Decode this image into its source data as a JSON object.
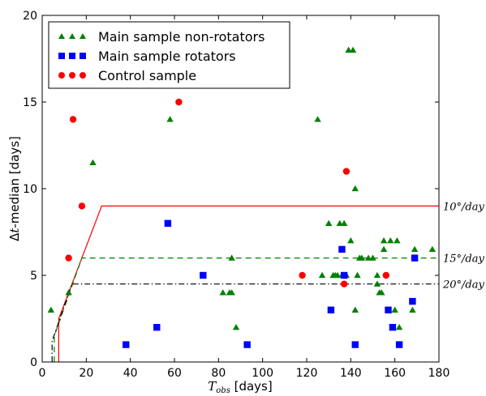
{
  "chart_data": {
    "type": "scatter",
    "xlabel": "T_obs [days]",
    "xlabel_main": "T",
    "xlabel_sub": "obs",
    "xlabel_unit": " [days]",
    "ylabel": "Δt-median [days]",
    "ylabel_delta": "Δ",
    "ylabel_t": "t",
    "ylabel_rest": "-median [days]",
    "xlim": [
      0,
      180
    ],
    "ylim": [
      0,
      20
    ],
    "xticks": [
      0,
      20,
      40,
      60,
      80,
      100,
      120,
      140,
      160,
      180
    ],
    "yticks": [
      0,
      5,
      10,
      15,
      20
    ],
    "grid": false,
    "legend_position": "top-left",
    "series": [
      {
        "name": "Main sample non-rotators",
        "marker": "triangle",
        "color": "#008000",
        "points": [
          [
            4,
            3
          ],
          [
            12,
            4
          ],
          [
            23,
            11.5
          ],
          [
            58,
            14
          ],
          [
            82,
            4
          ],
          [
            85,
            4
          ],
          [
            86,
            6
          ],
          [
            86,
            4
          ],
          [
            88,
            2
          ],
          [
            125,
            14
          ],
          [
            127,
            5
          ],
          [
            130,
            8
          ],
          [
            132,
            5
          ],
          [
            133,
            5
          ],
          [
            134,
            5
          ],
          [
            135,
            8
          ],
          [
            136,
            5
          ],
          [
            137,
            8
          ],
          [
            138,
            5
          ],
          [
            139,
            18
          ],
          [
            140,
            7
          ],
          [
            141,
            18
          ],
          [
            142,
            10
          ],
          [
            142,
            3
          ],
          [
            143,
            5
          ],
          [
            144,
            6
          ],
          [
            145,
            6
          ],
          [
            148,
            6
          ],
          [
            150,
            6
          ],
          [
            152,
            5
          ],
          [
            152,
            4.5
          ],
          [
            153,
            4
          ],
          [
            154,
            4
          ],
          [
            155,
            6.5
          ],
          [
            155,
            7
          ],
          [
            158,
            7
          ],
          [
            160,
            3
          ],
          [
            161,
            7
          ],
          [
            162,
            2
          ],
          [
            168,
            3
          ],
          [
            169,
            6.5
          ],
          [
            177,
            6.5
          ]
        ]
      },
      {
        "name": "Main sample rotators",
        "marker": "square",
        "color": "#0000ff",
        "points": [
          [
            38,
            1
          ],
          [
            52,
            2
          ],
          [
            57,
            8
          ],
          [
            73,
            5
          ],
          [
            93,
            1
          ],
          [
            131,
            3
          ],
          [
            136,
            6.5
          ],
          [
            137,
            5
          ],
          [
            142,
            1
          ],
          [
            157,
            3
          ],
          [
            159,
            2
          ],
          [
            162,
            1
          ],
          [
            168,
            3.5
          ],
          [
            169,
            6
          ]
        ]
      },
      {
        "name": "Control sample",
        "marker": "circle",
        "color": "#ff0000",
        "points": [
          [
            12,
            6
          ],
          [
            14,
            14
          ],
          [
            18,
            9
          ],
          [
            62,
            15
          ],
          [
            118,
            5
          ],
          [
            137,
            4.5
          ],
          [
            138,
            11
          ],
          [
            156,
            5
          ]
        ]
      }
    ],
    "lines": [
      {
        "label": "10°/day",
        "color": "#ff0000",
        "style": "solid",
        "points": [
          [
            7.5,
            0
          ],
          [
            7.5,
            2.5
          ],
          [
            27,
            9
          ],
          [
            180,
            9
          ]
        ]
      },
      {
        "label": "15°/day",
        "color": "#008000",
        "style": "dashed",
        "points": [
          [
            5.5,
            0
          ],
          [
            5.5,
            1.5
          ],
          [
            18,
            6
          ],
          [
            180,
            6
          ]
        ]
      },
      {
        "label": "20°/day",
        "color": "#000000",
        "style": "dashdot",
        "points": [
          [
            4.5,
            0
          ],
          [
            4.5,
            1.2
          ],
          [
            13.5,
            4.5
          ],
          [
            180,
            4.5
          ]
        ]
      }
    ]
  }
}
